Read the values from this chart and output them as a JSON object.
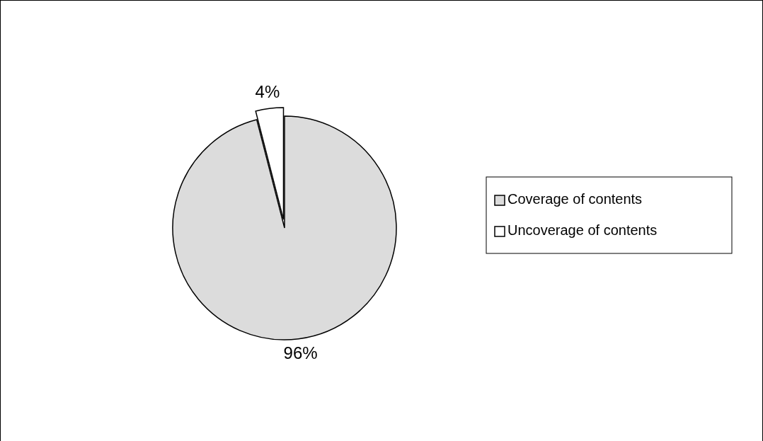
{
  "chart_data": {
    "type": "pie",
    "categories": [
      "Coverage of contents",
      "Uncoverage of contents"
    ],
    "values": [
      96,
      4
    ],
    "colors": [
      "#dcdcdc",
      "#ffffff"
    ],
    "value_labels": [
      "96%",
      "4%"
    ],
    "legend": "right"
  }
}
